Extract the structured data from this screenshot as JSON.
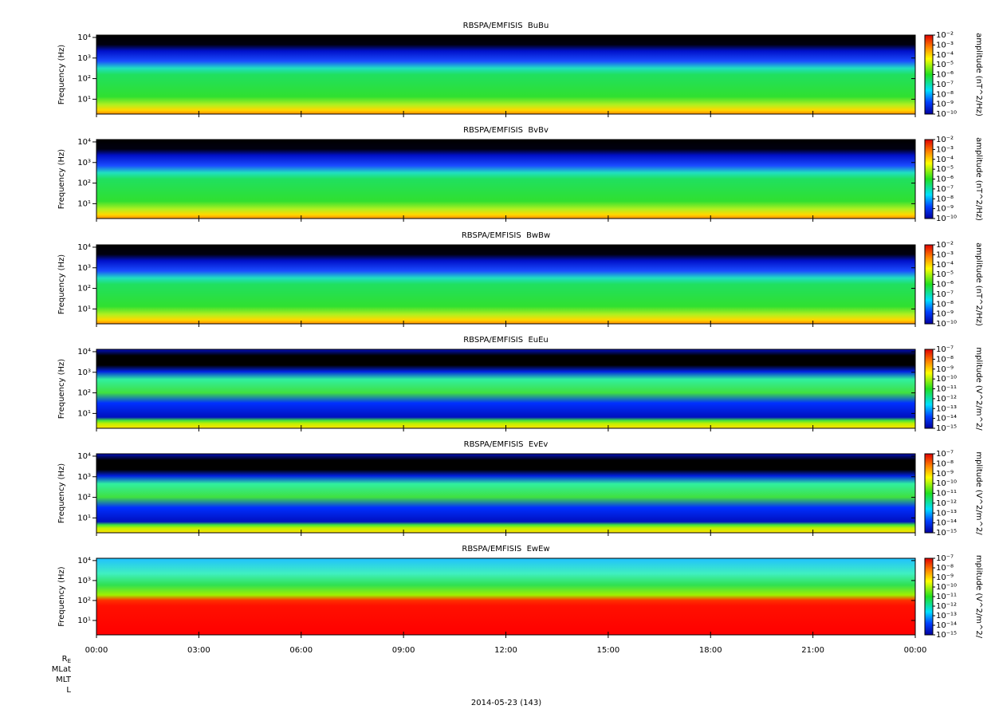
{
  "chart_data": [
    {
      "type": "spectrogram",
      "title": "RBSPA/EMFISIS  BuBu",
      "y_label": "Frequency (Hz)",
      "y_scale": "log",
      "ylim": [
        1.9,
        13000
      ],
      "yticks": [
        {
          "value": 10,
          "label": "10¹"
        },
        {
          "value": 100,
          "label": "10²"
        },
        {
          "value": 1000,
          "label": "10³"
        },
        {
          "value": 10000,
          "label": "10⁴"
        }
      ],
      "colorbar": {
        "label": "amplitude (nT^2/Hz)",
        "scale": "log",
        "lim": [
          1e-10,
          0.01
        ],
        "ticks": [
          {
            "value": 0.01,
            "label": "10⁻²"
          },
          {
            "value": 0.001,
            "label": "10⁻³"
          },
          {
            "value": 0.0001,
            "label": "10⁻⁴"
          },
          {
            "value": 1e-05,
            "label": "10⁻⁵"
          },
          {
            "value": 1e-06,
            "label": "10⁻⁶"
          },
          {
            "value": 1e-07,
            "label": "10⁻⁷"
          },
          {
            "value": 1e-08,
            "label": "10⁻⁸"
          },
          {
            "value": 1e-09,
            "label": "10⁻⁹"
          },
          {
            "value": 1e-10,
            "label": "10⁻¹⁰"
          }
        ]
      }
    },
    {
      "type": "spectrogram",
      "title": "RBSPA/EMFISIS  BvBv",
      "y_label": "Frequency (Hz)",
      "y_scale": "log",
      "ylim": [
        1.9,
        13000
      ],
      "yticks": [
        {
          "value": 10,
          "label": "10¹"
        },
        {
          "value": 100,
          "label": "10²"
        },
        {
          "value": 1000,
          "label": "10³"
        },
        {
          "value": 10000,
          "label": "10⁴"
        }
      ],
      "colorbar": {
        "label": "amplitude (nT^2/Hz)",
        "scale": "log",
        "lim": [
          1e-10,
          0.01
        ],
        "ticks": [
          {
            "value": 0.01,
            "label": "10⁻²"
          },
          {
            "value": 0.001,
            "label": "10⁻³"
          },
          {
            "value": 0.0001,
            "label": "10⁻⁴"
          },
          {
            "value": 1e-05,
            "label": "10⁻⁵"
          },
          {
            "value": 1e-06,
            "label": "10⁻⁶"
          },
          {
            "value": 1e-07,
            "label": "10⁻⁷"
          },
          {
            "value": 1e-08,
            "label": "10⁻⁸"
          },
          {
            "value": 1e-09,
            "label": "10⁻⁹"
          },
          {
            "value": 1e-10,
            "label": "10⁻¹⁰"
          }
        ]
      }
    },
    {
      "type": "spectrogram",
      "title": "RBSPA/EMFISIS  BwBw",
      "y_label": "Frequency (Hz)",
      "y_scale": "log",
      "ylim": [
        1.9,
        13000
      ],
      "yticks": [
        {
          "value": 10,
          "label": "10¹"
        },
        {
          "value": 100,
          "label": "10²"
        },
        {
          "value": 1000,
          "label": "10³"
        },
        {
          "value": 10000,
          "label": "10⁴"
        }
      ],
      "colorbar": {
        "label": "amplitude (nT^2/Hz)",
        "scale": "log",
        "lim": [
          1e-10,
          0.01
        ],
        "ticks": [
          {
            "value": 0.01,
            "label": "10⁻²"
          },
          {
            "value": 0.001,
            "label": "10⁻³"
          },
          {
            "value": 0.0001,
            "label": "10⁻⁴"
          },
          {
            "value": 1e-05,
            "label": "10⁻⁵"
          },
          {
            "value": 1e-06,
            "label": "10⁻⁶"
          },
          {
            "value": 1e-07,
            "label": "10⁻⁷"
          },
          {
            "value": 1e-08,
            "label": "10⁻⁸"
          },
          {
            "value": 1e-09,
            "label": "10⁻⁹"
          },
          {
            "value": 1e-10,
            "label": "10⁻¹⁰"
          }
        ]
      }
    },
    {
      "type": "spectrogram",
      "title": "RBSPA/EMFISIS  EuEu",
      "y_label": "Frequency (Hz)",
      "y_scale": "log",
      "ylim": [
        1.9,
        13000
      ],
      "yticks": [
        {
          "value": 10,
          "label": "10¹"
        },
        {
          "value": 100,
          "label": "10²"
        },
        {
          "value": 1000,
          "label": "10³"
        },
        {
          "value": 10000,
          "label": "10⁴"
        }
      ],
      "colorbar": {
        "label": "mplitude (V^2/m^2/",
        "scale": "log",
        "lim": [
          1e-15,
          1e-07
        ],
        "ticks": [
          {
            "value": 1e-07,
            "label": "10⁻⁷"
          },
          {
            "value": 1e-08,
            "label": "10⁻⁸"
          },
          {
            "value": 1e-09,
            "label": "10⁻⁹"
          },
          {
            "value": 1e-10,
            "label": "10⁻¹⁰"
          },
          {
            "value": 1e-11,
            "label": "10⁻¹¹"
          },
          {
            "value": 1e-12,
            "label": "10⁻¹²"
          },
          {
            "value": 1e-13,
            "label": "10⁻¹³"
          },
          {
            "value": 1e-14,
            "label": "10⁻¹⁴"
          },
          {
            "value": 1e-15,
            "label": "10⁻¹⁵"
          }
        ]
      }
    },
    {
      "type": "spectrogram",
      "title": "RBSPA/EMFISIS  EvEv",
      "y_label": "Frequency (Hz)",
      "y_scale": "log",
      "ylim": [
        1.9,
        13000
      ],
      "yticks": [
        {
          "value": 10,
          "label": "10¹"
        },
        {
          "value": 100,
          "label": "10²"
        },
        {
          "value": 1000,
          "label": "10³"
        },
        {
          "value": 10000,
          "label": "10⁴"
        }
      ],
      "colorbar": {
        "label": "mplitude (V^2/m^2/",
        "scale": "log",
        "lim": [
          1e-15,
          1e-07
        ],
        "ticks": [
          {
            "value": 1e-07,
            "label": "10⁻⁷"
          },
          {
            "value": 1e-08,
            "label": "10⁻⁸"
          },
          {
            "value": 1e-09,
            "label": "10⁻⁹"
          },
          {
            "value": 1e-10,
            "label": "10⁻¹⁰"
          },
          {
            "value": 1e-11,
            "label": "10⁻¹¹"
          },
          {
            "value": 1e-12,
            "label": "10⁻¹²"
          },
          {
            "value": 1e-13,
            "label": "10⁻¹³"
          },
          {
            "value": 1e-14,
            "label": "10⁻¹⁴"
          },
          {
            "value": 1e-15,
            "label": "10⁻¹⁵"
          }
        ]
      }
    },
    {
      "type": "spectrogram",
      "title": "RBSPA/EMFISIS  EwEw",
      "y_label": "Frequency (Hz)",
      "y_scale": "log",
      "ylim": [
        1.9,
        13000
      ],
      "yticks": [
        {
          "value": 10,
          "label": "10¹"
        },
        {
          "value": 100,
          "label": "10²"
        },
        {
          "value": 1000,
          "label": "10³"
        },
        {
          "value": 10000,
          "label": "10⁴"
        }
      ],
      "colorbar": {
        "label": "mplitude (V^2/m^2/",
        "scale": "log",
        "lim": [
          1e-15,
          1e-07
        ],
        "ticks": [
          {
            "value": 1e-07,
            "label": "10⁻⁷"
          },
          {
            "value": 1e-08,
            "label": "10⁻⁸"
          },
          {
            "value": 1e-09,
            "label": "10⁻⁹"
          },
          {
            "value": 1e-10,
            "label": "10⁻¹⁰"
          },
          {
            "value": 1e-11,
            "label": "10⁻¹¹"
          },
          {
            "value": 1e-12,
            "label": "10⁻¹²"
          },
          {
            "value": 1e-13,
            "label": "10⁻¹³"
          },
          {
            "value": 1e-14,
            "label": "10⁻¹⁴"
          },
          {
            "value": 1e-15,
            "label": "10⁻¹⁵"
          }
        ]
      },
      "xlim": [
        0,
        24
      ],
      "xticks": [
        {
          "value": 0,
          "label": "00:00"
        },
        {
          "value": 3,
          "label": "03:00"
        },
        {
          "value": 6,
          "label": "06:00"
        },
        {
          "value": 9,
          "label": "09:00"
        },
        {
          "value": 12,
          "label": "12:00"
        },
        {
          "value": 15,
          "label": "15:00"
        },
        {
          "value": 18,
          "label": "18:00"
        },
        {
          "value": 21,
          "label": "21:00"
        },
        {
          "value": 24,
          "label": "00:00"
        }
      ]
    }
  ],
  "footer": {
    "re_base": "R",
    "re_subscript": "E",
    "row_labels": [
      "MLat",
      "MLT",
      "L"
    ],
    "date": "2014-05-23 (143)"
  }
}
